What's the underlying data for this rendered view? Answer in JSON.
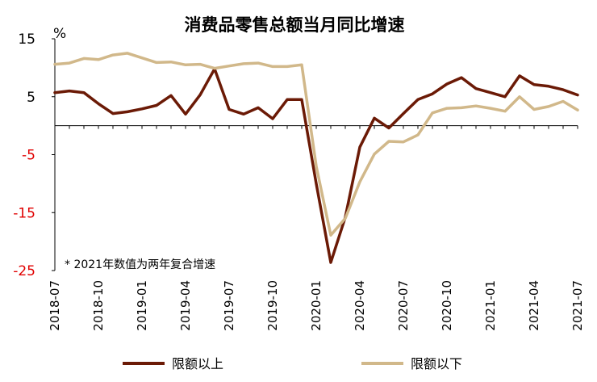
{
  "colors": {
    "series_above": "#6b1a06",
    "series_below": "#d1b88a",
    "negative_tick": "#e00000",
    "positive_tick": "#000000"
  },
  "chart_data": {
    "type": "line",
    "title": "消费品零售总额当月同比增速",
    "unit_label": "%",
    "note": "* 2021年数值为两年复合增速",
    "ylim": [
      -25,
      15
    ],
    "y_ticks": [
      15,
      5,
      -5,
      -15,
      -25
    ],
    "x_tick_labels": [
      "2018-07",
      "2018-10",
      "2019-01",
      "2019-04",
      "2019-07",
      "2019-10",
      "2020-01",
      "2020-04",
      "2020-07",
      "2020-10",
      "2021-01",
      "2021-04",
      "2021-07"
    ],
    "x": [
      "2018-07",
      "2018-08",
      "2018-09",
      "2018-10",
      "2018-11",
      "2018-12",
      "2019-01",
      "2019-02",
      "2019-03",
      "2019-04",
      "2019-05",
      "2019-06",
      "2019-07",
      "2019-08",
      "2019-09",
      "2019-10",
      "2019-11",
      "2019-12",
      "2020-01",
      "2020-02",
      "2020-03",
      "2020-04",
      "2020-05",
      "2020-06",
      "2020-07",
      "2020-08",
      "2020-09",
      "2020-10",
      "2020-11",
      "2020-12",
      "2021-01",
      "2021-02",
      "2021-03",
      "2021-04",
      "2021-05",
      "2021-06",
      "2021-07"
    ],
    "grid": false,
    "legend_position": "bottom",
    "series": [
      {
        "name": "限额以上",
        "color_key": "series_above",
        "values": [
          5.7,
          6.0,
          5.7,
          3.8,
          2.1,
          2.4,
          2.9,
          3.5,
          5.2,
          2.0,
          5.3,
          9.8,
          2.8,
          2.0,
          3.1,
          1.2,
          4.5,
          4.5,
          -10.0,
          -23.6,
          -15.8,
          -3.7,
          1.3,
          -0.4,
          2.1,
          4.5,
          5.5,
          7.2,
          8.3,
          6.4,
          5.7,
          5.0,
          8.6,
          7.1,
          6.8,
          6.2,
          5.3
        ]
      },
      {
        "name": "限额以下",
        "color_key": "series_below",
        "values": [
          10.6,
          10.8,
          11.6,
          11.4,
          12.2,
          12.5,
          11.7,
          10.9,
          11.0,
          10.5,
          10.6,
          9.9,
          10.3,
          10.7,
          10.8,
          10.2,
          10.2,
          10.5,
          -7.0,
          -18.9,
          -16.0,
          -9.7,
          -4.9,
          -2.7,
          -2.8,
          -1.6,
          2.2,
          3.0,
          3.1,
          3.4,
          3.0,
          2.5,
          5.0,
          2.8,
          3.3,
          4.2,
          2.7
        ]
      }
    ]
  }
}
